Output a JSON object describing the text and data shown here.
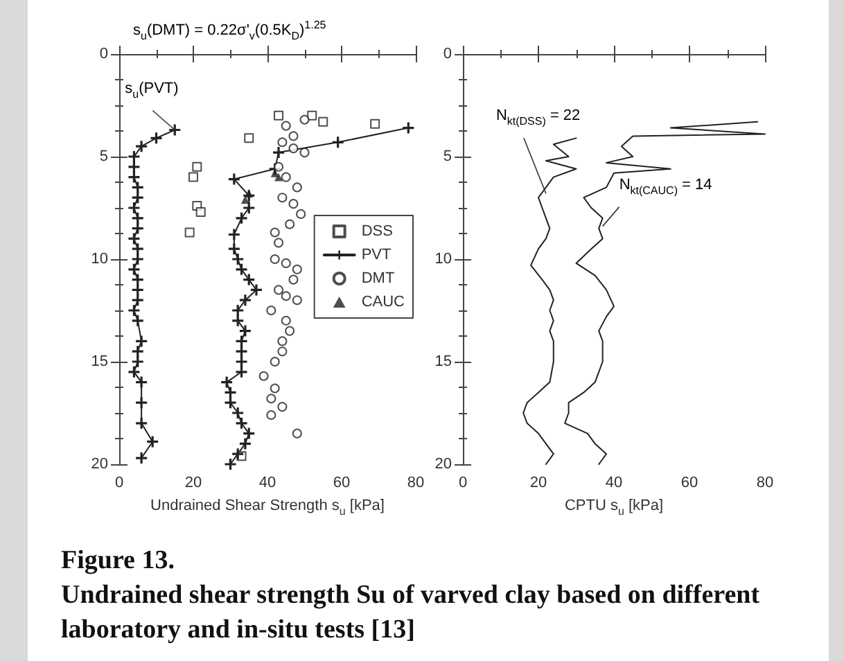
{
  "chart_data": [
    {
      "type": "scatter",
      "title": "Figure 13.",
      "subtitle": "Undrained shear strength Su of varved clay based on different laboratory and in-situ tests [13]",
      "xlabel": "Undrained Shear Strength s$_{u}$ [kPa]",
      "xlim": [
        0,
        80
      ],
      "xticks": [
        0,
        20,
        40,
        60,
        80
      ],
      "ylim": [
        20,
        0
      ],
      "yticks": [
        0,
        5,
        10,
        15,
        20
      ],
      "grid": false,
      "legend": "right",
      "annotations": [
        "s$_{u}$(DMT) = 0.22σ'$_{v}$(0.5K$_{D}$)$^{1.25}$",
        {
          "text": "s$_{u}$(PVT)",
          "x": 15,
          "y": 3.7
        }
      ],
      "series": [
        {
          "name": "DSS",
          "type": "scatter",
          "marker": "square",
          "color": "#222222",
          "x": [
            43,
            52,
            55,
            69,
            35,
            21,
            20,
            21,
            22,
            19,
            33
          ],
          "values": [
            3.0,
            3.0,
            3.3,
            3.4,
            4.1,
            5.5,
            6.0,
            7.4,
            7.7,
            8.7,
            19.6
          ]
        },
        {
          "name": "PVT",
          "type": "line",
          "marker": "cross",
          "color": "#222222",
          "x": [
            78,
            59,
            43,
            42,
            31,
            35,
            35,
            33,
            31,
            31,
            32,
            33,
            35,
            37,
            34,
            32,
            32,
            34,
            33,
            33,
            33,
            33,
            29,
            30,
            30,
            32,
            33,
            35,
            34,
            32,
            30
          ],
          "values": [
            3.6,
            4.3,
            4.8,
            5.6,
            6.1,
            6.9,
            7.5,
            8.0,
            8.8,
            9.5,
            10.0,
            10.5,
            11.0,
            11.5,
            12.0,
            12.5,
            13.0,
            13.5,
            14.0,
            14.5,
            15.0,
            15.5,
            16.0,
            16.5,
            17.0,
            17.5,
            18.0,
            18.5,
            19.0,
            19.5,
            20.0
          ]
        },
        {
          "type": "line",
          "marker": "cross",
          "color": "#222222",
          "x": [
            15,
            10,
            6,
            4,
            4,
            4,
            5,
            5,
            4,
            5,
            5,
            4,
            5,
            5,
            4,
            5,
            5,
            5,
            4,
            5,
            6,
            5,
            5,
            4,
            6,
            6,
            6,
            9,
            6
          ],
          "values": [
            3.7,
            4.1,
            4.5,
            5.0,
            5.5,
            6.0,
            6.5,
            7.0,
            7.5,
            8.0,
            8.5,
            9.0,
            9.5,
            10.0,
            10.5,
            11.0,
            11.5,
            12.0,
            12.5,
            13.0,
            14.0,
            14.5,
            15.0,
            15.5,
            16.0,
            17.0,
            18.0,
            18.9,
            19.7
          ]
        },
        {
          "name": "DMT",
          "type": "scatter",
          "marker": "circle",
          "color": "#222222",
          "x": [
            45,
            50,
            47,
            44,
            47,
            50,
            43,
            45,
            48,
            44,
            47,
            49,
            46,
            42,
            43,
            42,
            45,
            48,
            47,
            43,
            45,
            48,
            41,
            45,
            46,
            44,
            44,
            42,
            39,
            42,
            41,
            44,
            41,
            48
          ],
          "values": [
            3.5,
            3.2,
            4.0,
            4.3,
            4.6,
            4.8,
            5.5,
            6.0,
            6.5,
            7.0,
            7.3,
            7.8,
            8.3,
            8.7,
            9.2,
            10.0,
            10.2,
            10.5,
            11.0,
            11.5,
            11.8,
            12.0,
            12.5,
            13.0,
            13.5,
            14.0,
            14.5,
            15.0,
            15.7,
            16.3,
            16.8,
            17.2,
            17.6,
            18.5
          ]
        },
        {
          "name": "CAUC",
          "type": "scatter",
          "marker": "triangle",
          "color": "#222222",
          "x": [
            42,
            43,
            35,
            34
          ],
          "values": [
            5.8,
            6.0,
            6.8,
            7.1
          ]
        }
      ]
    },
    {
      "type": "line",
      "xlabel": "CPTU s$_{u}$ [kPa]",
      "xlim": [
        0,
        80
      ],
      "xticks": [
        0,
        20,
        40,
        60,
        80
      ],
      "ylim": [
        20,
        0
      ],
      "yticks": [
        0,
        5,
        10,
        15,
        20
      ],
      "grid": false,
      "marker": "none",
      "annotations": [
        {
          "text": "N$_{kt(DSS)}$ = 22",
          "x": 22,
          "y": 6.8
        },
        {
          "text": "N$_{kt(CAUC)}$ = 14",
          "x": 37,
          "y": 8.4
        }
      ],
      "series": [
        {
          "color": "#222222",
          "x": [
            78,
            55,
            80,
            45,
            42,
            45,
            38,
            55,
            40,
            38,
            32,
            34,
            37,
            36,
            37,
            34,
            30,
            35,
            38,
            40,
            38,
            36,
            37,
            37,
            35,
            32,
            28,
            28,
            27,
            33,
            35,
            38,
            36
          ],
          "values": [
            3.3,
            3.6,
            3.9,
            4.0,
            4.5,
            5.0,
            5.3,
            5.6,
            5.8,
            6.5,
            7.0,
            7.5,
            8.0,
            8.5,
            9.0,
            9.5,
            10.2,
            10.8,
            11.5,
            12.3,
            12.8,
            13.5,
            14.0,
            15.0,
            16.0,
            16.5,
            17.0,
            17.5,
            18.0,
            18.5,
            19.0,
            19.5,
            20.0
          ]
        },
        {
          "color": "#222222",
          "x": [
            30,
            24,
            28,
            22,
            30,
            24,
            22,
            20,
            21,
            22,
            23,
            22,
            20,
            18,
            21,
            23,
            24,
            23,
            24,
            23,
            24,
            24,
            23,
            20,
            17,
            16,
            17,
            20,
            22,
            24,
            22
          ],
          "values": [
            4.1,
            4.4,
            5.0,
            5.2,
            5.6,
            6.0,
            6.5,
            7.0,
            7.5,
            8.0,
            8.5,
            9.0,
            9.5,
            10.3,
            11.0,
            11.5,
            12.0,
            12.5,
            13.0,
            13.5,
            14.0,
            15.0,
            16.0,
            16.5,
            17.0,
            17.5,
            18.0,
            18.5,
            19.0,
            19.5,
            20.0
          ]
        }
      ]
    }
  ]
}
